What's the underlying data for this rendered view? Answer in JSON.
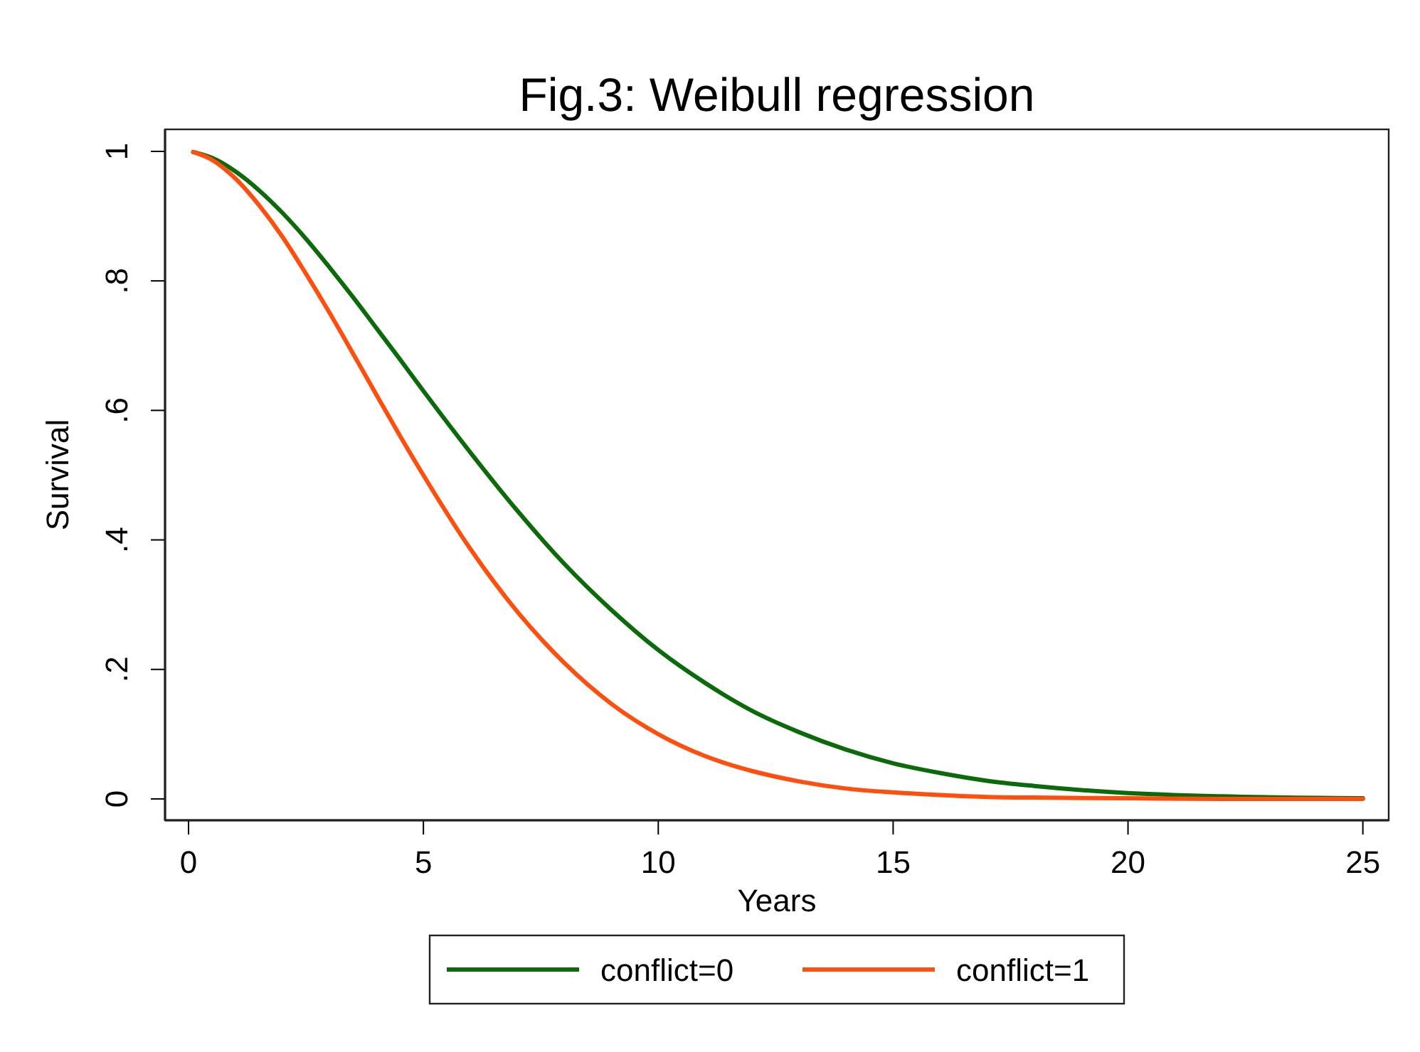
{
  "chart_data": {
    "type": "line",
    "title": "Fig.3: Weibull regression",
    "xlabel": "Years",
    "ylabel": "Survival",
    "xlim": [
      -0.5,
      25.55
    ],
    "ylim": [
      -0.033,
      1.034
    ],
    "xticks": [
      0,
      5,
      10,
      15,
      20,
      25
    ],
    "yticks": [
      {
        "value": 0,
        "label": "0"
      },
      {
        "value": 0.2,
        "label": ".2"
      },
      {
        "value": 0.4,
        "label": ".4"
      },
      {
        "value": 0.6,
        "label": ".6"
      },
      {
        "value": 0.8,
        "label": ".8"
      },
      {
        "value": 1,
        "label": "1"
      }
    ],
    "x": [
      0.1,
      0.5,
      1,
      1.5,
      2,
      2.5,
      3,
      3.5,
      4,
      4.5,
      5,
      6,
      7,
      8,
      9,
      10,
      11,
      12,
      13,
      14,
      15,
      16,
      17,
      18,
      20,
      22,
      25
    ],
    "series": [
      {
        "name": "conflict=0",
        "color": "#0b6b0b",
        "values": [
          0.999,
          0.99,
          0.969,
          0.94,
          0.905,
          0.865,
          0.821,
          0.775,
          0.727,
          0.679,
          0.63,
          0.535,
          0.445,
          0.363,
          0.292,
          0.23,
          0.179,
          0.136,
          0.103,
          0.076,
          0.055,
          0.04,
          0.028,
          0.02,
          0.009,
          0.004,
          0.001
        ]
      },
      {
        "name": "conflict=1",
        "color": "#ff4f0f",
        "values": [
          0.999,
          0.987,
          0.958,
          0.917,
          0.868,
          0.811,
          0.751,
          0.688,
          0.624,
          0.561,
          0.5,
          0.386,
          0.289,
          0.21,
          0.147,
          0.1,
          0.066,
          0.043,
          0.027,
          0.016,
          0.01,
          0.006,
          0.003,
          0.002,
          0.001,
          0,
          0
        ]
      }
    ],
    "legend": "bottom",
    "grid": false,
    "marker": "none",
    "line_style": "solid"
  }
}
